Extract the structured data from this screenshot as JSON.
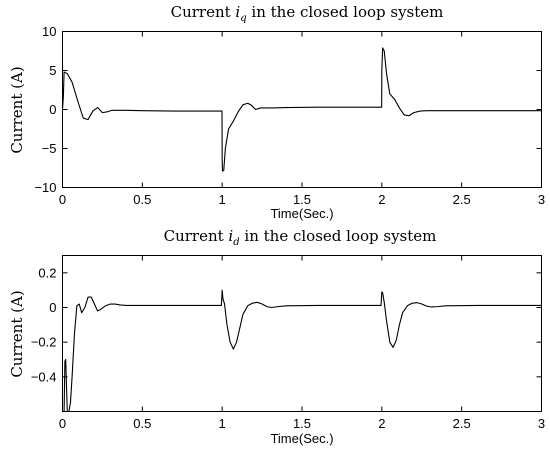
{
  "chart_data": [
    {
      "type": "line",
      "title": "Current i_q in the closed loop system",
      "title_parts": {
        "prefix": "Current ",
        "symbol": "i",
        "subscript": "q",
        "suffix": " in the closed loop system"
      },
      "xlabel": "Time(Sec.)",
      "ylabel": "Current (A)",
      "xlim": [
        0,
        3
      ],
      "ylim": [
        -10,
        10
      ],
      "xticks": [
        0,
        0.5,
        1,
        1.5,
        2,
        2.5,
        3
      ],
      "xtick_labels": [
        "0",
        "0.5",
        "1",
        "1.5",
        "2",
        "2.5",
        "3"
      ],
      "yticks": [
        -10,
        -5,
        0,
        5,
        10
      ],
      "ytick_labels": [
        "−10",
        "−5",
        "0",
        "5",
        "10"
      ],
      "grid": false,
      "series": [
        {
          "x": [
            0,
            0.005,
            0.01,
            0.03,
            0.06,
            0.1,
            0.13,
            0.16,
            0.19,
            0.22,
            0.25,
            0.28,
            0.31,
            0.35,
            0.4,
            0.5,
            0.7,
            0.9,
            0.999,
            1.0,
            1.002,
            1.01,
            1.02,
            1.04,
            1.07,
            1.1,
            1.13,
            1.16,
            1.18,
            1.21,
            1.24,
            1.28,
            1.32,
            1.4,
            1.6,
            1.8,
            1.999,
            2.0,
            2.005,
            2.015,
            2.03,
            2.05,
            2.08,
            2.11,
            2.14,
            2.17,
            2.2,
            2.24,
            2.28,
            2.32,
            2.4,
            2.6,
            2.8,
            3.0
          ],
          "y": [
            0,
            1.5,
            4.8,
            4.6,
            3.5,
            0.8,
            -1.1,
            -1.3,
            -0.2,
            0.25,
            -0.4,
            -0.3,
            -0.1,
            -0.1,
            -0.1,
            -0.15,
            -0.2,
            -0.2,
            -0.2,
            -6.2,
            -7.9,
            -7.8,
            -5.0,
            -2.5,
            -1.5,
            -0.3,
            0.6,
            0.8,
            0.6,
            0.0,
            0.2,
            0.2,
            0.2,
            0.25,
            0.3,
            0.3,
            0.3,
            5.0,
            7.9,
            7.5,
            4.5,
            2.0,
            1.3,
            0.2,
            -0.7,
            -0.8,
            -0.4,
            -0.2,
            -0.15,
            -0.15,
            -0.15,
            -0.15,
            -0.15,
            -0.15
          ]
        }
      ]
    },
    {
      "type": "line",
      "title": "Current i_d in the closed loop system",
      "title_parts": {
        "prefix": "Current ",
        "symbol": "i",
        "subscript": "d",
        "suffix": " in the closed loop system"
      },
      "xlabel": "Time(Sec.)",
      "ylabel": "Current (A)",
      "xlim": [
        0,
        3
      ],
      "ylim": [
        -0.6,
        0.3
      ],
      "xticks": [
        0,
        0.5,
        1,
        1.5,
        2,
        2.5,
        3
      ],
      "xtick_labels": [
        "0",
        "0.5",
        "1",
        "1.5",
        "2",
        "2.5",
        "3"
      ],
      "yticks": [
        -0.4,
        -0.2,
        0,
        0.2
      ],
      "ytick_labels": [
        "−0.4",
        "−0.2",
        "0",
        "0.2"
      ],
      "grid": false,
      "series": [
        {
          "x": [
            0.01,
            0.015,
            0.02,
            0.025,
            0.03,
            0.04,
            0.05,
            0.06,
            0.075,
            0.09,
            0.105,
            0.12,
            0.14,
            0.16,
            0.18,
            0.2,
            0.22,
            0.24,
            0.27,
            0.3,
            0.33,
            0.36,
            0.4,
            0.5,
            0.7,
            0.9,
            0.995,
            1.0,
            1.005,
            1.015,
            1.03,
            1.05,
            1.07,
            1.09,
            1.11,
            1.13,
            1.16,
            1.19,
            1.22,
            1.25,
            1.28,
            1.31,
            1.35,
            1.4,
            1.6,
            1.8,
            1.995,
            2.0,
            2.005,
            2.015,
            2.03,
            2.05,
            2.07,
            2.09,
            2.11,
            2.13,
            2.16,
            2.19,
            2.22,
            2.25,
            2.28,
            2.31,
            2.35,
            2.4,
            2.6,
            2.8,
            3.0
          ],
          "y": [
            -0.6,
            -0.31,
            -0.3,
            -0.45,
            -0.6,
            -0.6,
            -0.55,
            -0.4,
            -0.15,
            0.01,
            0.02,
            -0.03,
            0.0,
            0.06,
            0.06,
            0.02,
            -0.02,
            -0.01,
            0.01,
            0.02,
            0.02,
            0.015,
            0.012,
            0.012,
            0.012,
            0.012,
            0.012,
            0.1,
            0.05,
            0.02,
            -0.1,
            -0.2,
            -0.24,
            -0.2,
            -0.12,
            -0.04,
            0.01,
            0.025,
            0.03,
            0.02,
            0.005,
            0.0,
            0.005,
            0.01,
            0.012,
            0.012,
            0.012,
            0.09,
            0.085,
            0.03,
            -0.08,
            -0.2,
            -0.23,
            -0.19,
            -0.1,
            -0.03,
            0.01,
            0.025,
            0.028,
            0.02,
            0.008,
            0.003,
            0.005,
            0.01,
            0.012,
            0.012,
            0.012
          ]
        }
      ]
    }
  ]
}
